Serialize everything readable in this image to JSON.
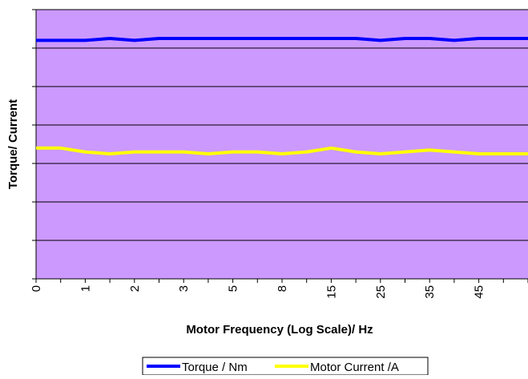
{
  "chart_data": {
    "type": "line",
    "title": "",
    "xlabel": "Motor Frequency (Log Scale)/ Hz",
    "ylabel": "Torque/ Current",
    "categories": [
      "0",
      "",
      "1",
      "",
      "2",
      "",
      "3",
      "",
      "5",
      "",
      "8",
      "",
      "15",
      "",
      "25",
      "",
      "35",
      "",
      "45",
      ""
    ],
    "ylim": [
      0,
      7
    ],
    "grid": "horizontal",
    "legend_position": "bottom",
    "series": [
      {
        "name": "Torque / Nm",
        "color": "#0000ff",
        "values": [
          6.2,
          6.2,
          6.2,
          6.25,
          6.2,
          6.25,
          6.25,
          6.25,
          6.25,
          6.25,
          6.25,
          6.25,
          6.25,
          6.25,
          6.2,
          6.25,
          6.25,
          6.2,
          6.25,
          6.25
        ]
      },
      {
        "name": "Motor Current /A",
        "color": "#ffff00",
        "values": [
          3.4,
          3.4,
          3.3,
          3.25,
          3.3,
          3.3,
          3.3,
          3.25,
          3.3,
          3.3,
          3.25,
          3.3,
          3.4,
          3.3,
          3.25,
          3.3,
          3.35,
          3.3,
          3.25,
          3.25
        ]
      }
    ]
  },
  "colors": {
    "plot_background": "#cc99ff",
    "gridline": "#000000"
  }
}
